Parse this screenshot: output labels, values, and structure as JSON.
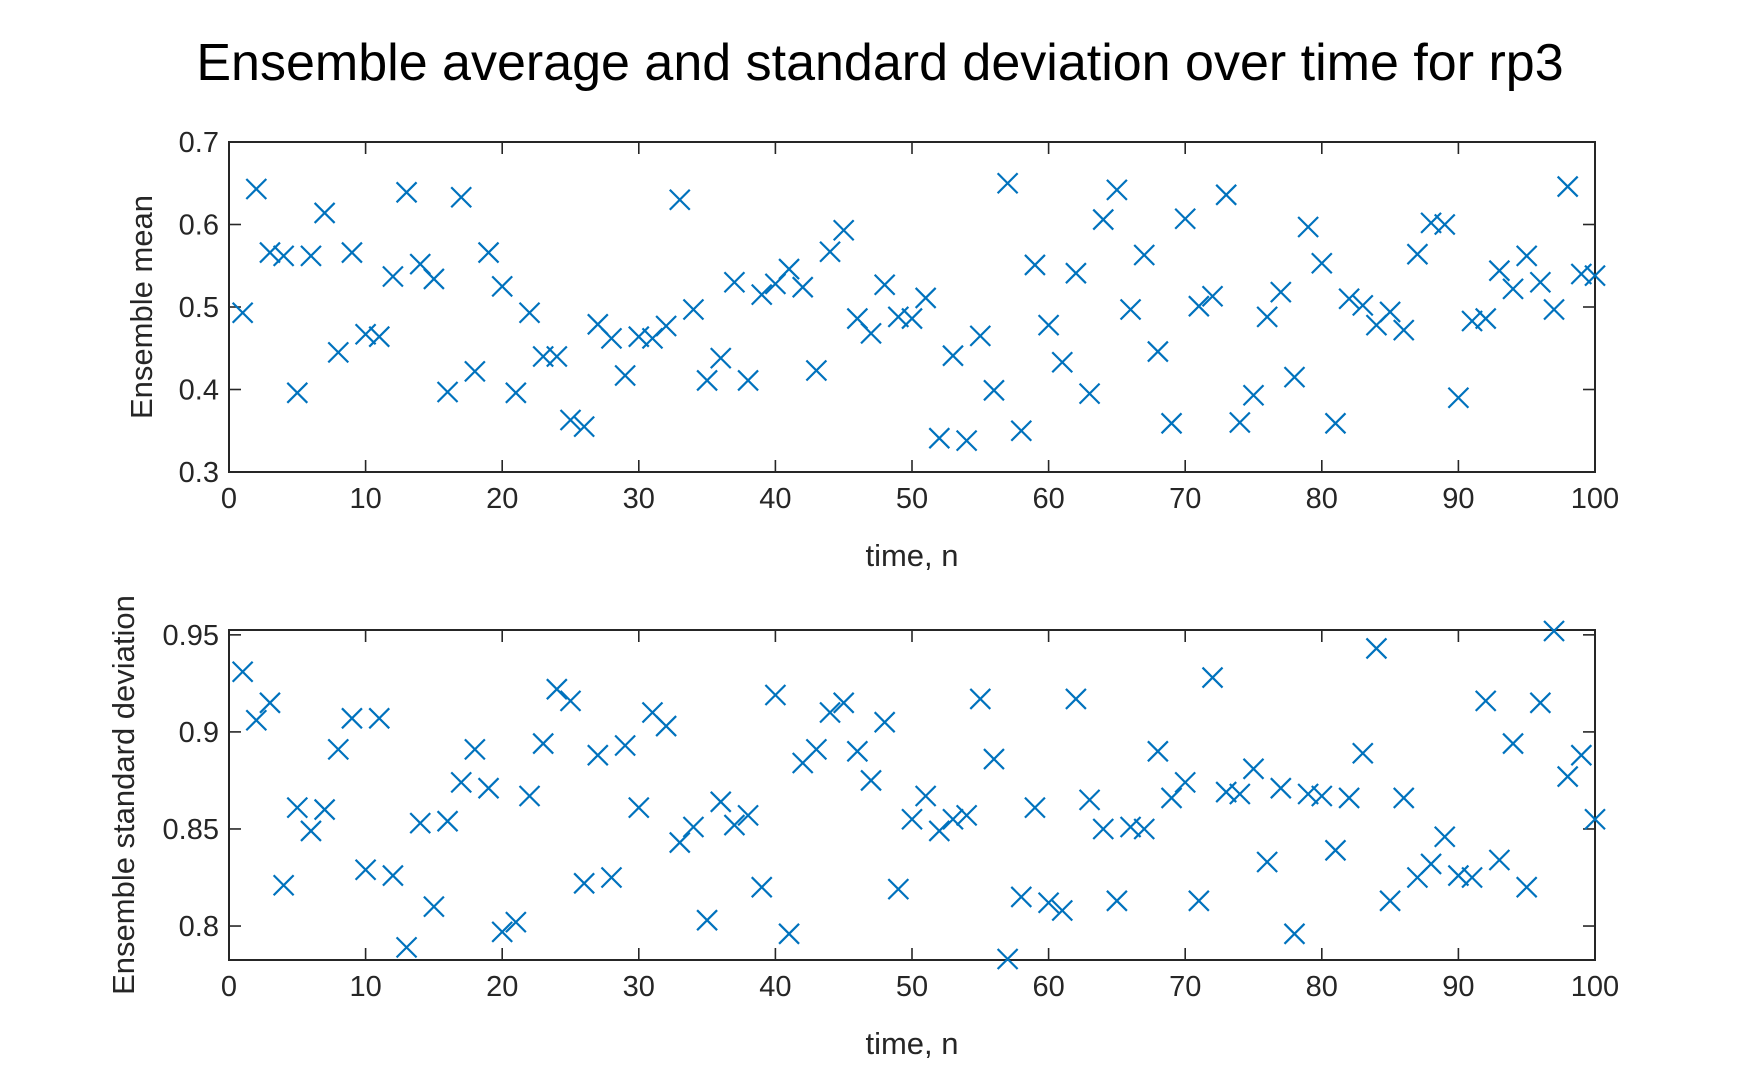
{
  "figure": {
    "title": "Ensemble average and standard deviation over time for rp3"
  },
  "chart_data": [
    {
      "type": "scatter",
      "marker": "x",
      "color": "#0072BD",
      "xlabel": "time, n",
      "ylabel": "Ensemble mean",
      "xlim": [
        0,
        100
      ],
      "ylim": [
        0.3,
        0.7
      ],
      "xticks": [
        "0",
        "10",
        "20",
        "30",
        "40",
        "50",
        "60",
        "70",
        "80",
        "90",
        "100"
      ],
      "yticks": [
        "0.3",
        "0.4",
        "0.5",
        "0.6",
        "0.7"
      ],
      "grid": false,
      "x": [
        1,
        2,
        3,
        4,
        5,
        6,
        7,
        8,
        9,
        10,
        11,
        12,
        13,
        14,
        15,
        16,
        17,
        18,
        19,
        20,
        21,
        22,
        23,
        24,
        25,
        26,
        27,
        28,
        29,
        30,
        31,
        32,
        33,
        34,
        35,
        36,
        37,
        38,
        39,
        40,
        41,
        42,
        43,
        44,
        45,
        46,
        47,
        48,
        49,
        50,
        51,
        52,
        53,
        54,
        55,
        56,
        57,
        58,
        59,
        60,
        61,
        62,
        63,
        64,
        65,
        66,
        67,
        68,
        69,
        70,
        71,
        72,
        73,
        74,
        75,
        76,
        77,
        78,
        79,
        80,
        81,
        82,
        83,
        84,
        85,
        86,
        87,
        88,
        89,
        90,
        91,
        92,
        93,
        94,
        95,
        96,
        97,
        98,
        99,
        100
      ],
      "y": [
        0.493,
        0.643,
        0.566,
        0.562,
        0.396,
        0.562,
        0.614,
        0.445,
        0.566,
        0.467,
        0.464,
        0.537,
        0.639,
        0.552,
        0.534,
        0.397,
        0.633,
        0.422,
        0.566,
        0.525,
        0.396,
        0.493,
        0.44,
        0.44,
        0.363,
        0.355,
        0.479,
        0.462,
        0.417,
        0.464,
        0.462,
        0.477,
        0.63,
        0.497,
        0.411,
        0.438,
        0.53,
        0.411,
        0.515,
        0.528,
        0.546,
        0.524,
        0.423,
        0.567,
        0.593,
        0.486,
        0.468,
        0.527,
        0.488,
        0.486,
        0.511,
        0.341,
        0.441,
        0.338,
        0.465,
        0.399,
        0.65,
        0.35,
        0.551,
        0.478,
        0.433,
        0.541,
        0.395,
        0.606,
        0.642,
        0.497,
        0.563,
        0.446,
        0.359,
        0.607,
        0.501,
        0.513,
        0.636,
        0.36,
        0.393,
        0.488,
        0.518,
        0.415,
        0.597,
        0.553,
        0.359,
        0.51,
        0.502,
        0.478,
        0.494,
        0.472,
        0.564,
        0.602,
        0.6,
        0.39,
        0.483,
        0.486,
        0.544,
        0.522,
        0.562,
        0.53,
        0.497,
        0.646,
        0.54,
        0.538
      ]
    },
    {
      "type": "scatter",
      "marker": "x",
      "color": "#0072BD",
      "xlabel": "time, n",
      "ylabel": "Ensemble standard deviation",
      "xlim": [
        0,
        100
      ],
      "ylim": [
        0.7825,
        0.9525
      ],
      "xticks": [
        "0",
        "10",
        "20",
        "30",
        "40",
        "50",
        "60",
        "70",
        "80",
        "90",
        "100"
      ],
      "yticks": [
        "0.8",
        "0.85",
        "0.9",
        "0.95"
      ],
      "grid": false,
      "x": [
        1,
        2,
        3,
        4,
        5,
        6,
        7,
        8,
        9,
        10,
        11,
        12,
        13,
        14,
        15,
        16,
        17,
        18,
        19,
        20,
        21,
        22,
        23,
        24,
        25,
        26,
        27,
        28,
        29,
        30,
        31,
        32,
        33,
        34,
        35,
        36,
        37,
        38,
        39,
        40,
        41,
        42,
        43,
        44,
        45,
        46,
        47,
        48,
        49,
        50,
        51,
        52,
        53,
        54,
        55,
        56,
        57,
        58,
        59,
        60,
        61,
        62,
        63,
        64,
        65,
        66,
        67,
        68,
        69,
        70,
        71,
        72,
        73,
        74,
        75,
        76,
        77,
        78,
        79,
        80,
        81,
        82,
        83,
        84,
        85,
        86,
        87,
        88,
        89,
        90,
        91,
        92,
        93,
        94,
        95,
        96,
        97,
        98,
        99,
        100
      ],
      "y": [
        0.931,
        0.906,
        0.915,
        0.821,
        0.861,
        0.849,
        0.86,
        0.891,
        0.907,
        0.829,
        0.907,
        0.826,
        0.789,
        0.853,
        0.81,
        0.854,
        0.874,
        0.891,
        0.871,
        0.797,
        0.802,
        0.867,
        0.894,
        0.922,
        0.916,
        0.822,
        0.888,
        0.825,
        0.893,
        0.861,
        0.91,
        0.903,
        0.843,
        0.851,
        0.803,
        0.864,
        0.852,
        0.857,
        0.82,
        0.919,
        0.796,
        0.884,
        0.891,
        0.91,
        0.915,
        0.89,
        0.875,
        0.905,
        0.819,
        0.855,
        0.867,
        0.849,
        0.855,
        0.857,
        0.917,
        0.886,
        0.783,
        0.815,
        0.861,
        0.812,
        0.808,
        0.917,
        0.865,
        0.85,
        0.813,
        0.851,
        0.85,
        0.89,
        0.866,
        0.874,
        0.813,
        0.928,
        0.869,
        0.868,
        0.881,
        0.833,
        0.871,
        0.796,
        0.868,
        0.867,
        0.839,
        0.866,
        0.889,
        0.943,
        0.813,
        0.866,
        0.825,
        0.832,
        0.846,
        0.826,
        0.825,
        0.916,
        0.834,
        0.894,
        0.82,
        0.915,
        0.952,
        0.877,
        0.888,
        0.855
      ]
    }
  ]
}
